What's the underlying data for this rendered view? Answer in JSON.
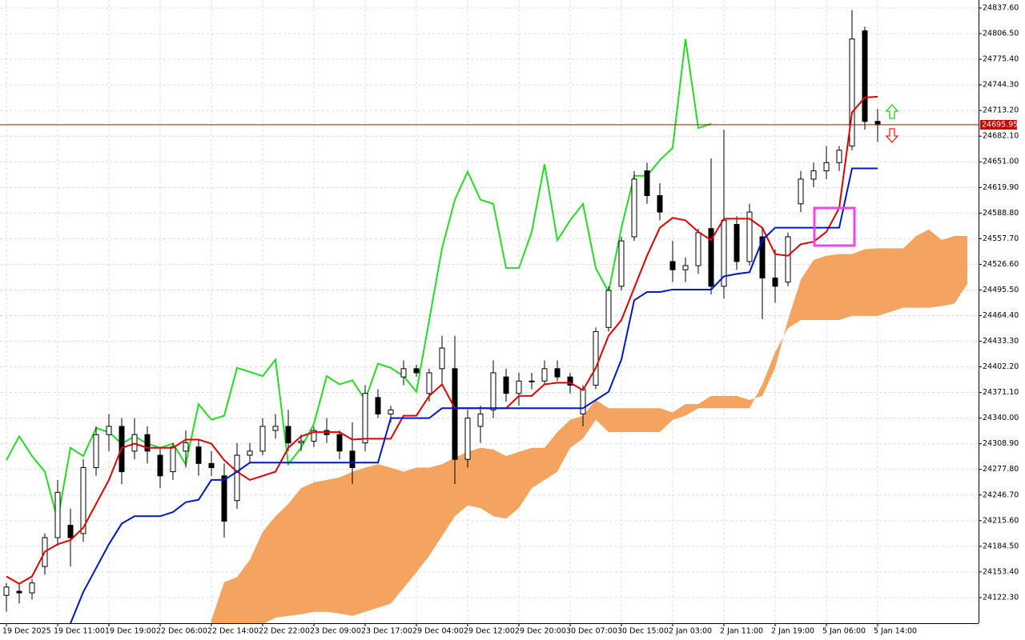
{
  "chart_data": {
    "type": "candlestick",
    "grid": true,
    "ylim": [
      24091.2,
      24847.3
    ],
    "yticks": [
      {
        "value": 24837.6,
        "label": "24837.60"
      },
      {
        "value": 24806.5,
        "label": "24806.50"
      },
      {
        "value": 24775.4,
        "label": "24775.40"
      },
      {
        "value": 24744.3,
        "label": "24744.30"
      },
      {
        "value": 24713.2,
        "label": "24713.20"
      },
      {
        "value": 24682.1,
        "label": "24682.10"
      },
      {
        "value": 24651,
        "label": "24651.00"
      },
      {
        "value": 24619.9,
        "label": "24619.90"
      },
      {
        "value": 24588.8,
        "label": "24588.80"
      },
      {
        "value": 24557.7,
        "label": "24557.70"
      },
      {
        "value": 24526.6,
        "label": "24526.60"
      },
      {
        "value": 24495.5,
        "label": "24495.50"
      },
      {
        "value": 24464.4,
        "label": "24464.40"
      },
      {
        "value": 24433.3,
        "label": "24433.30"
      },
      {
        "value": 24402.2,
        "label": "24402.20"
      },
      {
        "value": 24371.1,
        "label": "24371.10"
      },
      {
        "value": 24340,
        "label": "24340.00"
      },
      {
        "value": 24308.9,
        "label": "24308.90"
      },
      {
        "value": 24277.8,
        "label": "24277.80"
      },
      {
        "value": 24246.7,
        "label": "24246.70"
      },
      {
        "value": 24215.6,
        "label": "24215.60"
      },
      {
        "value": 24184.5,
        "label": "24184.50"
      },
      {
        "value": 24153.4,
        "label": "24153.40"
      },
      {
        "value": 24122.3,
        "label": "24122.30"
      }
    ],
    "current_price": 24695.95,
    "current_price_color": "#cc0000",
    "categories": [
      "19 Dec 2025",
      null,
      null,
      null,
      "19 Dec 11:00",
      null,
      null,
      null,
      "19 Dec 19:00",
      null,
      null,
      null,
      "22 Dec 06:00",
      null,
      null,
      null,
      "22 Dec 14:00",
      null,
      null,
      null,
      "22 Dec 22:00",
      null,
      null,
      null,
      "23 Dec 09:00",
      null,
      null,
      null,
      "23 Dec 17:00",
      null,
      null,
      null,
      "29 Dec 04:00",
      null,
      null,
      null,
      "29 Dec 12:00",
      null,
      null,
      null,
      "29 Dec 20:00",
      null,
      null,
      null,
      "30 Dec 07:00",
      null,
      null,
      null,
      "30 Dec 15:00",
      null,
      null,
      null,
      "2 Jan 03:00",
      null,
      null,
      null,
      "2 Jan 11:00",
      null,
      null,
      null,
      "2 Jan 19:00",
      null,
      null,
      null,
      "5 Jan 06:00",
      null,
      null,
      null,
      "5 Jan 14:00",
      null,
      null,
      null,
      null,
      null,
      null,
      null
    ],
    "open": [
      24125,
      24130,
      24128,
      24160,
      24195,
      24210,
      24200,
      24280,
      24320,
      24330,
      24300,
      24320,
      24295,
      24275,
      24300,
      24305,
      24285,
      24270,
      24240,
      24295,
      24300,
      24325,
      24330,
      24310,
      24312,
      24325,
      24320,
      24300,
      24310,
      24365,
      24345,
      24390,
      24400,
      24370,
      24400,
      24400,
      24290,
      24330,
      24350,
      24390,
      24370,
      24385,
      24385,
      24400,
      24390,
      24345,
      24380,
      24450,
      24500,
      24560,
      24640,
      24610,
      24530,
      24520,
      24525,
      24570,
      24500,
      24575,
      24530,
      24560,
      24510,
      24505,
      24600,
      24630,
      24640,
      24650,
      24670,
      24810,
      24700,
      null,
      null,
      null,
      null,
      null,
      null,
      null
    ],
    "high": [
      24140,
      24140,
      24145,
      24200,
      24265,
      24230,
      24290,
      24330,
      24345,
      24340,
      24340,
      24330,
      24305,
      24310,
      24325,
      24315,
      24300,
      24285,
      24310,
      24310,
      24340,
      24345,
      24350,
      24320,
      24330,
      24340,
      24325,
      24335,
      24380,
      24375,
      24355,
      24410,
      24405,
      24400,
      24440,
      24440,
      24350,
      24355,
      24410,
      24400,
      24395,
      24395,
      24410,
      24410,
      24395,
      24380,
      24450,
      24500,
      24560,
      24640,
      24650,
      24625,
      24555,
      24535,
      24570,
      24655,
      24690,
      24585,
      24600,
      24570,
      24545,
      24565,
      24640,
      24650,
      24670,
      24670,
      24835,
      24815,
      24715,
      null,
      null,
      null,
      null,
      null,
      null,
      null
    ],
    "low": [
      24105,
      24115,
      24120,
      24150,
      24185,
      24160,
      24190,
      24270,
      24300,
      24260,
      24290,
      24285,
      24255,
      24265,
      24280,
      24270,
      24270,
      24195,
      24230,
      24285,
      24295,
      24315,
      24300,
      24300,
      24305,
      24310,
      24290,
      24260,
      24300,
      24340,
      24335,
      24380,
      24390,
      24360,
      24380,
      24260,
      24280,
      24310,
      24340,
      24360,
      24355,
      24375,
      24380,
      24385,
      24370,
      24330,
      24375,
      24445,
      24495,
      24555,
      24600,
      24580,
      24505,
      24505,
      24515,
      24490,
      24485,
      24520,
      24525,
      24460,
      24480,
      24500,
      24590,
      24620,
      24630,
      24640,
      24665,
      24690,
      24675,
      null,
      null,
      null,
      null,
      null,
      null,
      null
    ],
    "close": [
      24135,
      24128,
      24140,
      24195,
      24250,
      24195,
      24280,
      24320,
      24330,
      24275,
      24320,
      24300,
      24270,
      24305,
      24310,
      24285,
      24280,
      24215,
      24295,
      24300,
      24330,
      24330,
      24310,
      24312,
      24325,
      24320,
      24300,
      24280,
      24370,
      24345,
      24350,
      24400,
      24395,
      24395,
      24425,
      24290,
      24340,
      24345,
      24395,
      24370,
      24385,
      24385,
      24400,
      24390,
      24380,
      24375,
      24445,
      24495,
      24555,
      24630,
      24610,
      24590,
      24520,
      24525,
      24565,
      24500,
      24580,
      24530,
      24590,
      24510,
      24500,
      24560,
      24630,
      24640,
      24650,
      24665,
      24800,
      24700,
      24696,
      null,
      null,
      null,
      null,
      null,
      null,
      null
    ],
    "up_color": "#ffffff",
    "down_color": "#000000",
    "indicators": {
      "tenkan": {
        "color": "#e00000",
        "values": [
          24148,
          24139,
          24148,
          24178,
          24187,
          24192,
          24207,
          24236,
          24265,
          24304,
          24309,
          24304,
          24304,
          24304,
          24314,
          24314,
          24309,
          24289,
          24275,
          24265,
          24270,
          24275,
          24304,
          24318,
          24323,
          24323,
          24323,
          24314,
          24315,
          24315,
          24315,
          24343,
          24343,
          24367,
          24381,
          24352,
          24352,
          24352,
          24352,
          24352,
          24367,
          24367,
          24381,
          24383,
          24383,
          24374,
          24401,
          24440,
          24459,
          24498,
          24537,
          24571,
          24583,
          24580,
          24566,
          24556,
          24582,
          24582,
          24582,
          24571,
          24539,
          24537,
          24551,
          24554,
          24566,
          24595,
          24711,
          24729,
          24730,
          null,
          null,
          null,
          null,
          null,
          null,
          null
        ]
      },
      "kijun": {
        "color": "#0018c8",
        "values": [
          null,
          null,
          null,
          null,
          null,
          24091,
          24129,
          24158,
          24187,
          24212,
          24221,
          24221,
          24221,
          24226,
          24238,
          24241,
          24265,
          24265,
          24275,
          24286,
          24286,
          24286,
          24286,
          24286,
          24286,
          24286,
          24286,
          24286,
          24286,
          24286,
          24340,
          24340,
          24340,
          24340,
          24352,
          24352,
          24352,
          24352,
          24352,
          24352,
          24352,
          24352,
          24352,
          24352,
          24352,
          24352,
          24362,
          24372,
          24411,
          24483,
          24493,
          24493,
          24496,
          24496,
          24496,
          24496,
          24512,
          24515,
          24517,
          24556,
          24571,
          24571,
          24571,
          24571,
          24571,
          24571,
          24643,
          24643,
          24643,
          null,
          null,
          null,
          null,
          null,
          null,
          null
        ]
      },
      "chikou": {
        "color": "#22dd22",
        "values": [
          24289,
          24318,
          24294,
          24275,
          24216,
          24304,
          24294,
          24328,
          24323,
          24309,
          24318,
          24309,
          24304,
          24309,
          24284,
          24357,
          24338,
          24343,
          24401,
          24396,
          24391,
          24411,
          24284,
          24304,
          24333,
          24391,
          24381,
          24386,
          24362,
          24406,
          24401,
          24391,
          24372,
          24459,
          24546,
          24605,
          24639,
          24605,
          24600,
          24522,
          24522,
          24566,
          24648,
          24556,
          24580,
          24600,
          24522,
          24493,
          24571,
          24634,
          24634,
          24653,
          24668,
          24800,
          24692,
          24697,
          null,
          null,
          null,
          null,
          null,
          null,
          null,
          null,
          null,
          null,
          null,
          null,
          null,
          null,
          null,
          null,
          null,
          null,
          null,
          null
        ]
      }
    },
    "cloud": {
      "color": "#f4a460",
      "span_a": [
        null,
        null,
        null,
        null,
        null,
        null,
        null,
        null,
        null,
        null,
        null,
        null,
        null,
        null,
        null,
        null,
        24095,
        24141,
        24147,
        24168,
        24202,
        24221,
        24236,
        24255,
        24262,
        24265,
        24268,
        24275,
        24280,
        24284,
        24280,
        24275,
        24280,
        24280,
        24284,
        24292,
        24299,
        24304,
        24302,
        24294,
        24299,
        24304,
        24304,
        24323,
        24338,
        24343,
        24362,
        24352,
        24352,
        24352,
        24352,
        24352,
        24347,
        24357,
        24357,
        24367,
        24367,
        24367,
        24362,
        24367,
        24401,
        24459,
        24508,
        24532,
        24537,
        24539,
        24539,
        24545,
        24546,
        24546,
        24546,
        24561,
        24569,
        24556,
        24561,
        24561
      ],
      "span_b": [
        null,
        null,
        null,
        null,
        null,
        null,
        null,
        null,
        null,
        null,
        null,
        null,
        null,
        null,
        null,
        null,
        24085,
        24085,
        24085,
        24085,
        24090,
        24098,
        24100,
        24102,
        24105,
        24105,
        24103,
        24100,
        24105,
        24110,
        24115,
        24134,
        24153,
        24173,
        24197,
        24221,
        24234,
        24231,
        24221,
        24218,
        24231,
        24255,
        24265,
        24275,
        24304,
        24315,
        24338,
        24323,
        24323,
        24323,
        24323,
        24323,
        24338,
        24343,
        24352,
        24352,
        24352,
        24352,
        24352,
        24381,
        24420,
        24449,
        24459,
        24459,
        24459,
        24459,
        24464,
        24464,
        24464,
        24469,
        24474,
        24474,
        24474,
        24476,
        24479,
        24503
      ]
    }
  }
}
